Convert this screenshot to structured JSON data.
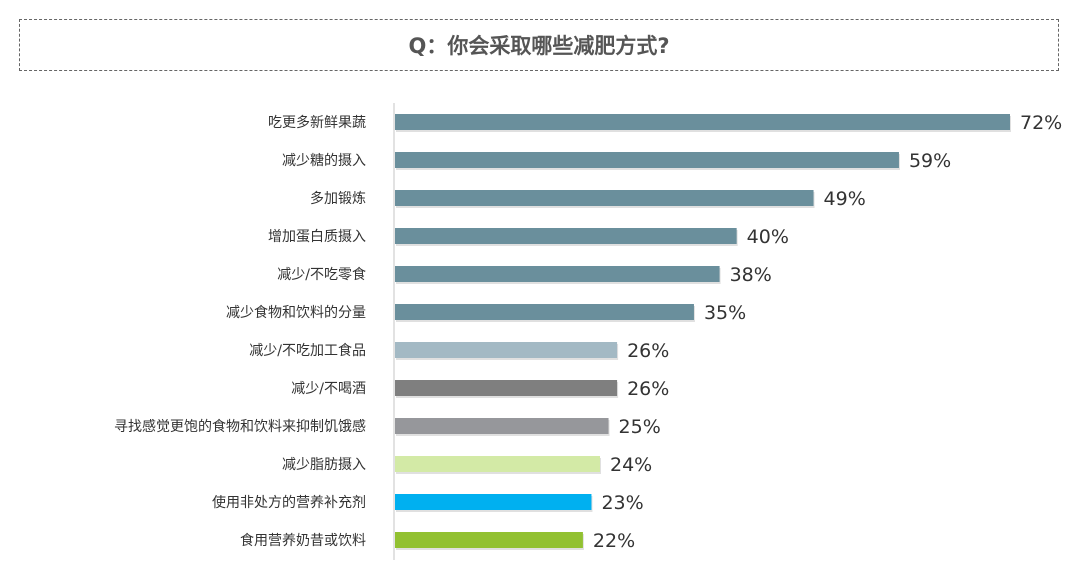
{
  "chart_data": {
    "type": "bar",
    "orientation": "horizontal",
    "title": "Q：你会采取哪些减肥方式?",
    "xlabel": "",
    "ylabel": "",
    "xlim": [
      0,
      72
    ],
    "grid": false,
    "unit": "%",
    "categories": [
      "吃更多新鲜果蔬",
      "减少糖的摄入",
      "多加锻炼",
      "增加蛋白质摄入",
      "减少/不吃零食",
      "减少食物和饮料的分量",
      "减少/不吃加工食品",
      "减少/不喝酒",
      "寻找感觉更饱的食物和饮料来抑制饥饿感",
      "减少脂肪摄入",
      "使用非处方的营养补充剂",
      "食用营养奶昔或饮料"
    ],
    "values": [
      72,
      59,
      49,
      40,
      38,
      35,
      26,
      26,
      25,
      24,
      23,
      22
    ],
    "labels": [
      "72%",
      "59%",
      "49%",
      "40%",
      "38%",
      "35%",
      "26%",
      "26%",
      "25%",
      "24%",
      "23%",
      "22%"
    ],
    "colors": [
      "#6a8f9c",
      "#6a8f9c",
      "#6a8f9c",
      "#6a8f9c",
      "#6a8f9c",
      "#6a8f9c",
      "#a3b9c4",
      "#7f7f7f",
      "#96979b",
      "#d3eaa6",
      "#00b0f0",
      "#92c131"
    ]
  }
}
